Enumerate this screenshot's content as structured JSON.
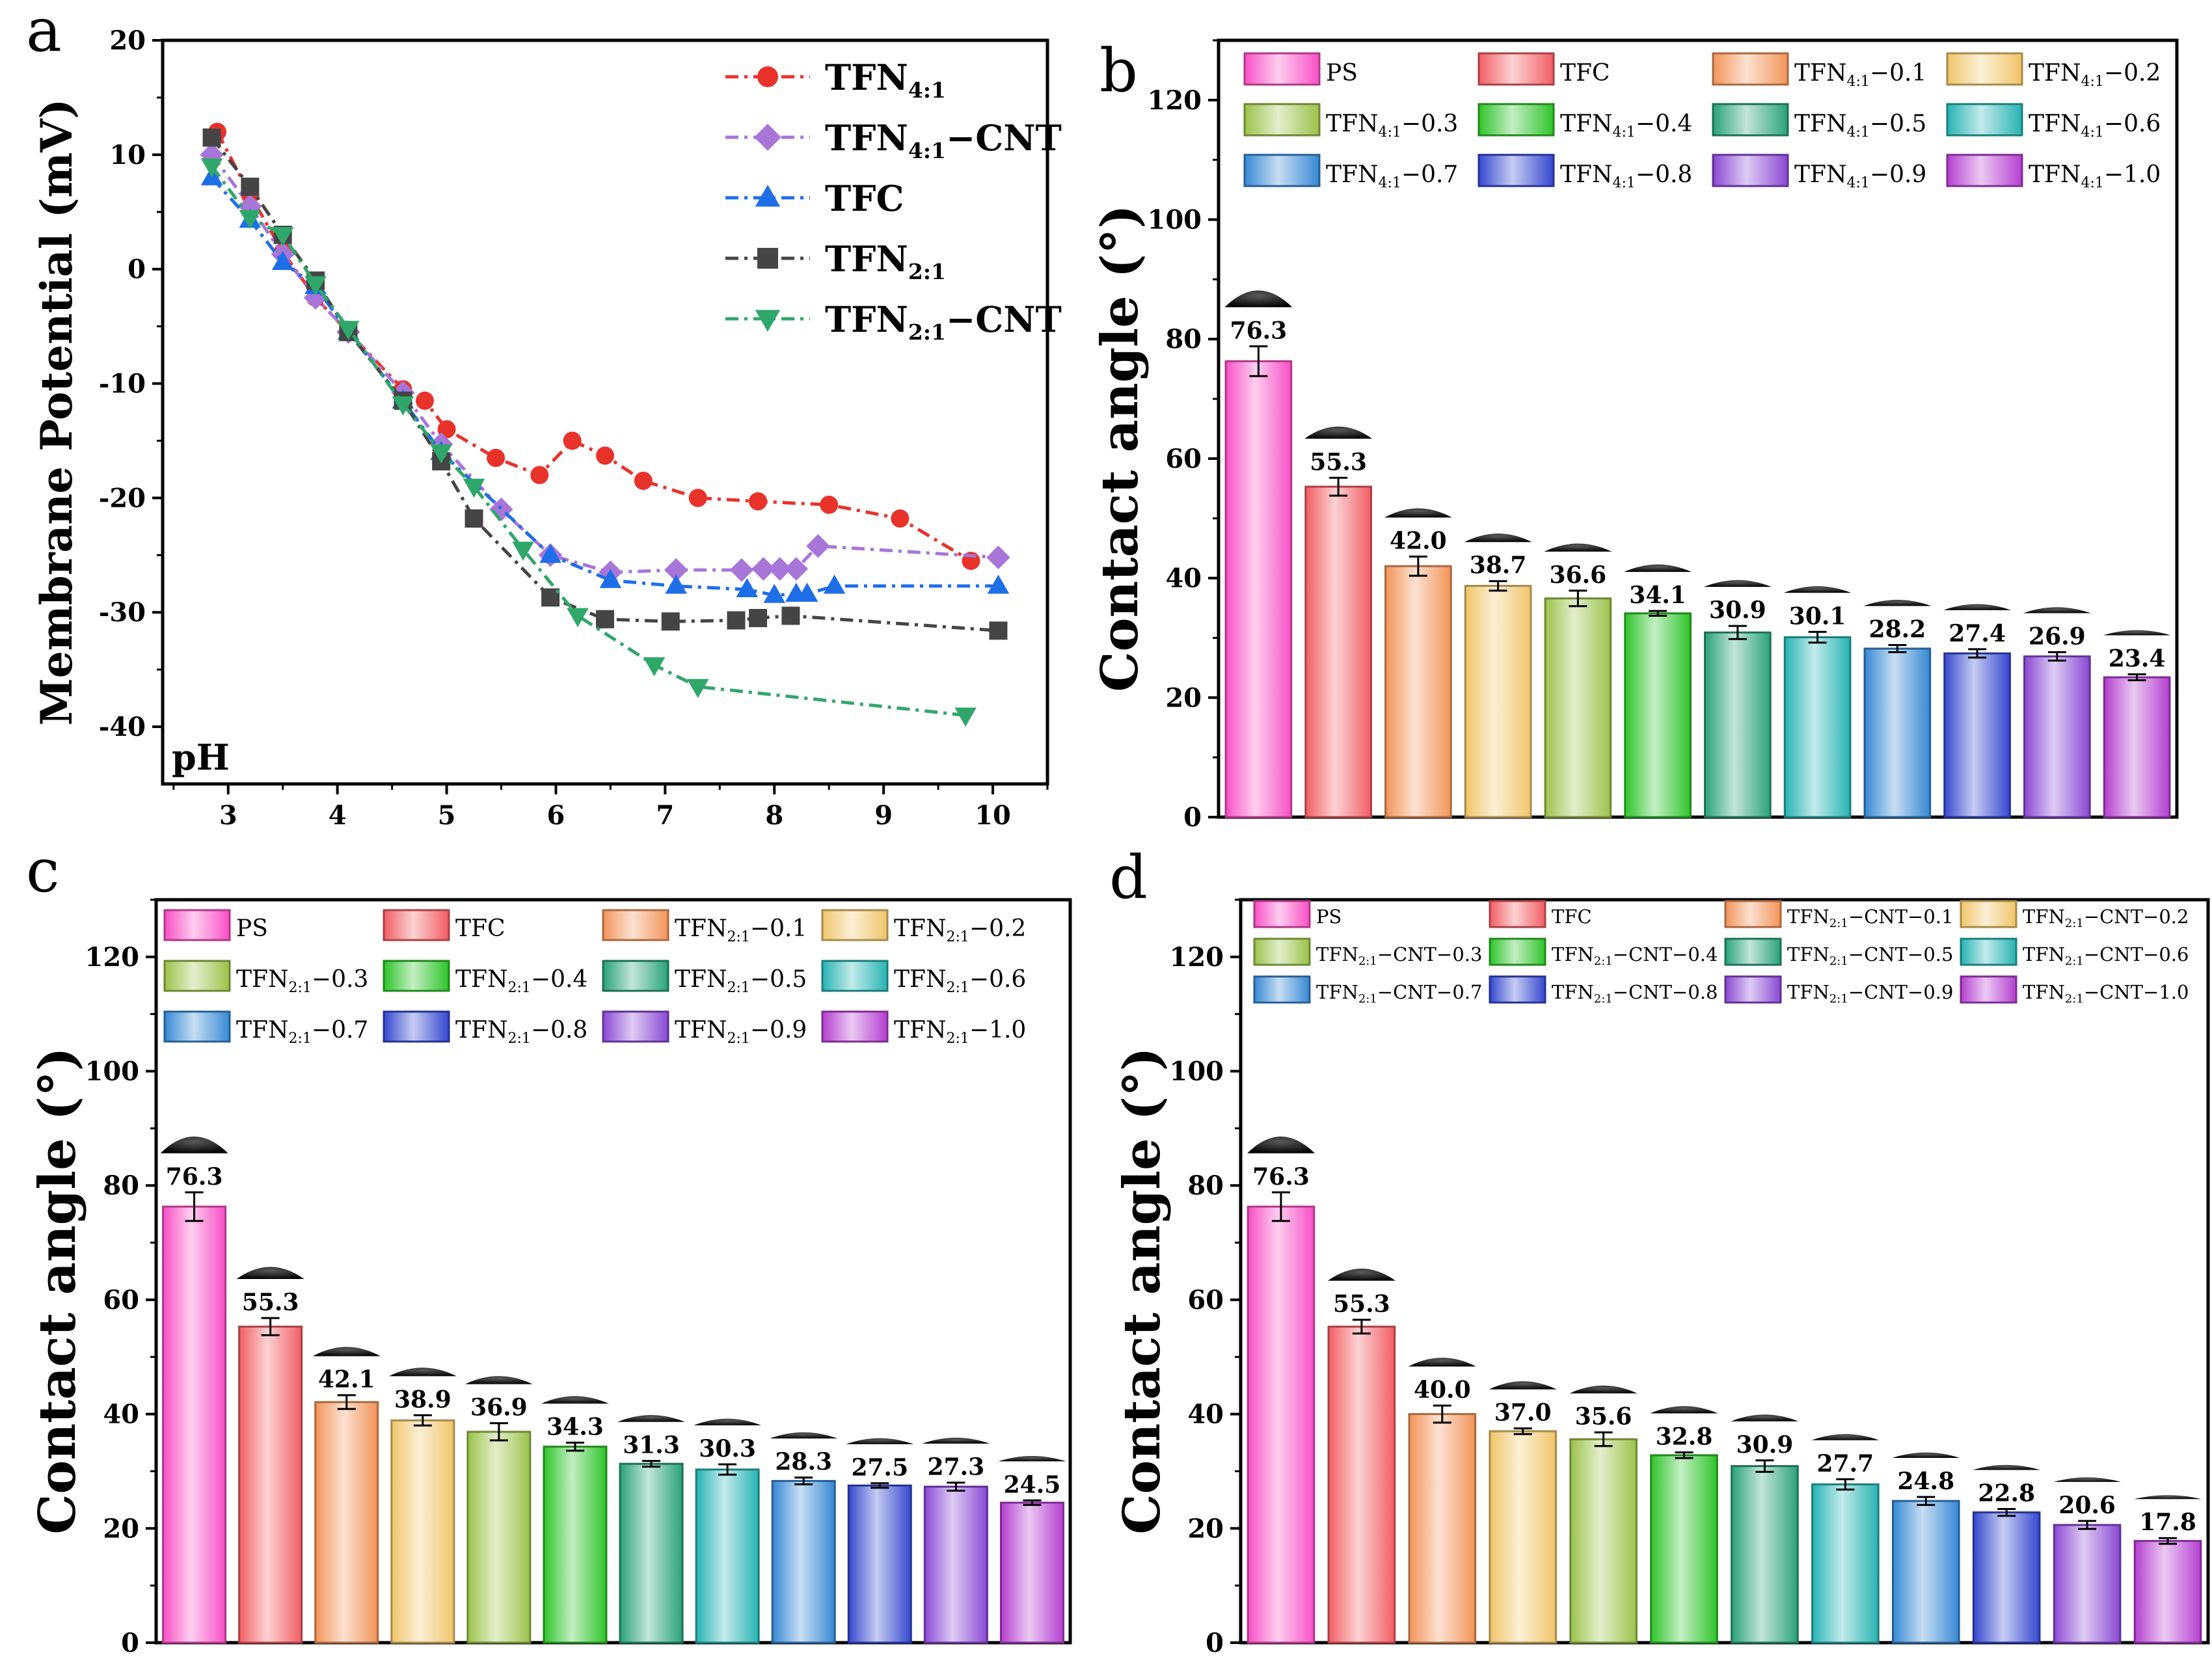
{
  "panel_labels": [
    "a",
    "b",
    "c",
    "d"
  ],
  "colors": {
    "TFN41": "#e8322a",
    "TFN41_CNT": "#a875d8",
    "TFC": "#1e6ee8",
    "TFN21": "#454545",
    "TFN21_CNT": "#2fa76a",
    "bars": [
      "#f84fc5",
      "#f25d63",
      "#f29459",
      "#efc56a",
      "#9bc24a",
      "#2ec42a",
      "#2aa27a",
      "#27b3b3",
      "#3688d4",
      "#3548d0",
      "#8a48d4",
      "#b43fd0"
    ]
  },
  "chart_data": [
    {
      "panel": "a",
      "type": "line",
      "xlabel": "pH",
      "ylabel": "Membrane Potential (mV)",
      "xlim": [
        2.4,
        10.5
      ],
      "ylim": [
        -45,
        20
      ],
      "xticks": [
        3,
        4,
        5,
        6,
        7,
        8,
        9,
        10
      ],
      "yticks": [
        20,
        10,
        0,
        -10,
        -20,
        -30,
        -40
      ],
      "legend_position": "top-right",
      "series": [
        {
          "name": "TFN",
          "sub": "4:1",
          "suffix": "",
          "color_key": "TFN41",
          "marker": "circle",
          "x": [
            2.9,
            3.2,
            3.5,
            3.8,
            4.1,
            4.6,
            4.8,
            5.0,
            5.45,
            5.85,
            6.15,
            6.45,
            6.8,
            7.3,
            7.85,
            8.5,
            9.15,
            9.8
          ],
          "y": [
            12.0,
            6.5,
            1.5,
            -2.5,
            -5.5,
            -10.5,
            -11.5,
            -14.0,
            -16.5,
            -18.0,
            -15.0,
            -16.3,
            -18.5,
            -20.0,
            -20.3,
            -20.6,
            -21.8,
            -25.5
          ]
        },
        {
          "name": "TFN",
          "sub": "4:1",
          "suffix": "−CNT",
          "color_key": "TFN41_CNT",
          "marker": "diamond",
          "x": [
            2.85,
            3.2,
            3.5,
            3.8,
            4.1,
            4.6,
            4.95,
            5.5,
            5.95,
            6.5,
            7.1,
            7.7,
            7.9,
            8.05,
            8.2,
            8.4,
            10.05
          ],
          "y": [
            10.0,
            5.5,
            1.3,
            -2.5,
            -5.5,
            -10.8,
            -15.3,
            -21.0,
            -25.0,
            -26.5,
            -26.3,
            -26.3,
            -26.2,
            -26.2,
            -26.2,
            -24.2,
            -25.2
          ]
        },
        {
          "name": "TFC",
          "sub": "",
          "suffix": "",
          "color_key": "TFC",
          "marker": "triangle-up",
          "x": [
            2.85,
            3.2,
            3.5,
            3.8,
            4.1,
            4.6,
            4.95,
            5.95,
            6.5,
            7.1,
            7.75,
            8.0,
            8.2,
            8.3,
            8.55,
            10.05
          ],
          "y": [
            8.0,
            4.3,
            0.6,
            -1.5,
            -5.5,
            -11.5,
            -16.0,
            -25.0,
            -27.2,
            -27.7,
            -28.0,
            -28.5,
            -28.4,
            -28.4,
            -27.7,
            -27.7
          ]
        },
        {
          "name": "TFN",
          "sub": "2:1",
          "suffix": "",
          "color_key": "TFN21",
          "marker": "square",
          "x": [
            2.85,
            3.2,
            3.5,
            3.8,
            4.1,
            4.6,
            4.95,
            5.25,
            5.95,
            6.45,
            7.05,
            7.65,
            7.85,
            8.15,
            10.05
          ],
          "y": [
            11.5,
            7.2,
            3.0,
            -1.0,
            -5.5,
            -11.5,
            -16.8,
            -21.8,
            -28.7,
            -30.6,
            -30.8,
            -30.7,
            -30.5,
            -30.3,
            -31.6
          ]
        },
        {
          "name": "TFN",
          "sub": "2:1",
          "suffix": "−CNT",
          "color_key": "TFN21_CNT",
          "marker": "triangle-down",
          "x": [
            2.85,
            3.2,
            3.5,
            3.8,
            4.1,
            4.6,
            4.95,
            5.25,
            5.7,
            6.2,
            6.9,
            7.3,
            9.75
          ],
          "y": [
            9.0,
            4.5,
            3.0,
            -1.3,
            -5.2,
            -11.8,
            -16.0,
            -19.0,
            -24.5,
            -30.3,
            -34.6,
            -36.5,
            -39.0
          ]
        }
      ]
    },
    {
      "panel": "b",
      "type": "bar",
      "ylabel": "Contact angle (°)",
      "ylim": [
        0,
        130
      ],
      "yticks": [
        0,
        20,
        40,
        60,
        80,
        100,
        120
      ],
      "legend_position": "top",
      "categories": [
        {
          "base": "PS",
          "sub": "",
          "suffix": ""
        },
        {
          "base": "TFC",
          "sub": "",
          "suffix": ""
        },
        {
          "base": "TFN",
          "sub": "4:1",
          "suffix": "−0.1"
        },
        {
          "base": "TFN",
          "sub": "4:1",
          "suffix": "−0.2"
        },
        {
          "base": "TFN",
          "sub": "4:1",
          "suffix": "−0.3"
        },
        {
          "base": "TFN",
          "sub": "4:1",
          "suffix": "−0.4"
        },
        {
          "base": "TFN",
          "sub": "4:1",
          "suffix": "−0.5"
        },
        {
          "base": "TFN",
          "sub": "4:1",
          "suffix": "−0.6"
        },
        {
          "base": "TFN",
          "sub": "4:1",
          "suffix": "−0.7"
        },
        {
          "base": "TFN",
          "sub": "4:1",
          "suffix": "−0.8"
        },
        {
          "base": "TFN",
          "sub": "4:1",
          "suffix": "−0.9"
        },
        {
          "base": "TFN",
          "sub": "4:1",
          "suffix": "−1.0"
        }
      ],
      "values": [
        76.3,
        55.3,
        42.0,
        38.7,
        36.6,
        34.1,
        30.9,
        30.1,
        28.2,
        27.4,
        26.9,
        23.4
      ],
      "value_labels": [
        "76.3",
        "55.3",
        "42.0",
        "38.7",
        "36.6",
        "34.1",
        "30.9",
        "30.1",
        "28.2",
        "27.4",
        "26.9",
        "23.4"
      ],
      "errors": [
        2.5,
        1.5,
        1.6,
        0.8,
        1.3,
        0.4,
        1.1,
        0.9,
        0.6,
        0.7,
        0.7,
        0.5
      ]
    },
    {
      "panel": "c",
      "type": "bar",
      "ylabel": "Contact angle (°)",
      "ylim": [
        0,
        130
      ],
      "yticks": [
        0,
        20,
        40,
        60,
        80,
        100,
        120
      ],
      "legend_position": "top",
      "categories": [
        {
          "base": "PS",
          "sub": "",
          "suffix": ""
        },
        {
          "base": "TFC",
          "sub": "",
          "suffix": ""
        },
        {
          "base": "TFN",
          "sub": "2:1",
          "suffix": "−0.1"
        },
        {
          "base": "TFN",
          "sub": "2:1",
          "suffix": "−0.2"
        },
        {
          "base": "TFN",
          "sub": "2:1",
          "suffix": "−0.3"
        },
        {
          "base": "TFN",
          "sub": "2:1",
          "suffix": "−0.4"
        },
        {
          "base": "TFN",
          "sub": "2:1",
          "suffix": "−0.5"
        },
        {
          "base": "TFN",
          "sub": "2:1",
          "suffix": "−0.6"
        },
        {
          "base": "TFN",
          "sub": "2:1",
          "suffix": "−0.7"
        },
        {
          "base": "TFN",
          "sub": "2:1",
          "suffix": "−0.8"
        },
        {
          "base": "TFN",
          "sub": "2:1",
          "suffix": "−0.9"
        },
        {
          "base": "TFN",
          "sub": "2:1",
          "suffix": "−1.0"
        }
      ],
      "values": [
        76.3,
        55.3,
        42.1,
        38.9,
        36.9,
        34.3,
        31.3,
        30.3,
        28.3,
        27.5,
        27.3,
        24.5
      ],
      "value_labels": [
        "76.3",
        "55.3",
        "42.1",
        "38.9",
        "36.9",
        "34.3",
        "31.3",
        "30.3",
        "28.3",
        "27.5",
        "27.3",
        "24.5"
      ],
      "errors": [
        2.5,
        1.5,
        1.2,
        0.9,
        1.5,
        0.7,
        0.5,
        0.9,
        0.6,
        0.4,
        0.7,
        0.4
      ]
    },
    {
      "panel": "d",
      "type": "bar",
      "ylabel": "Contact angle (°)",
      "ylim": [
        0,
        130
      ],
      "yticks": [
        0,
        20,
        40,
        60,
        80,
        100,
        120
      ],
      "legend_position": "top",
      "categories": [
        {
          "base": "PS",
          "sub": "",
          "suffix": ""
        },
        {
          "base": "TFC",
          "sub": "",
          "suffix": ""
        },
        {
          "base": "TFN",
          "sub": "2:1",
          "suffix": "−CNT−0.1"
        },
        {
          "base": "TFN",
          "sub": "2:1",
          "suffix": "−CNT−0.2"
        },
        {
          "base": "TFN",
          "sub": "2:1",
          "suffix": "−CNT−0.3"
        },
        {
          "base": "TFN",
          "sub": "2:1",
          "suffix": "−CNT−0.4"
        },
        {
          "base": "TFN",
          "sub": "2:1",
          "suffix": "−CNT−0.5"
        },
        {
          "base": "TFN",
          "sub": "2:1",
          "suffix": "−CNT−0.6"
        },
        {
          "base": "TFN",
          "sub": "2:1",
          "suffix": "−CNT−0.7"
        },
        {
          "base": "TFN",
          "sub": "2:1",
          "suffix": "−CNT−0.8"
        },
        {
          "base": "TFN",
          "sub": "2:1",
          "suffix": "−CNT−0.9"
        },
        {
          "base": "TFN",
          "sub": "2:1",
          "suffix": "−CNT−1.0"
        }
      ],
      "values": [
        76.3,
        55.3,
        40.0,
        37.0,
        35.6,
        32.8,
        30.9,
        27.7,
        24.8,
        22.8,
        20.6,
        17.8
      ],
      "value_labels": [
        "76.3",
        "55.3",
        "40.0",
        "37.0",
        "35.6",
        "32.8",
        "30.9",
        "27.7",
        "24.8",
        "22.8",
        "20.6",
        "17.8"
      ],
      "errors": [
        2.5,
        1.2,
        1.5,
        0.5,
        1.2,
        0.5,
        1.0,
        0.9,
        0.7,
        0.6,
        0.7,
        0.5
      ]
    }
  ]
}
